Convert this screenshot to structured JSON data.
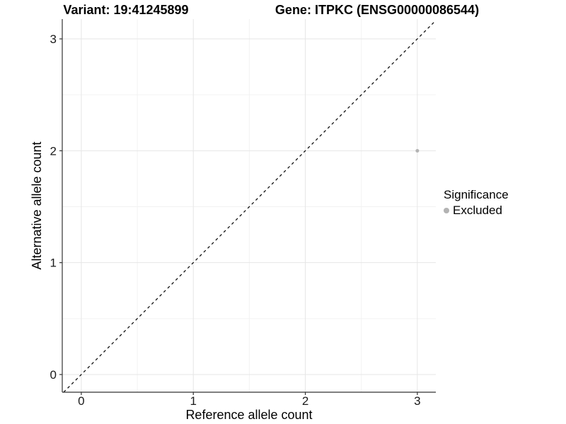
{
  "titles": {
    "left": "Variant: 19:41245899",
    "right": "Gene: ITPKC (ENSG00000086544)"
  },
  "chart_data": {
    "type": "scatter",
    "title": "Variant: 19:41245899 — Gene: ITPKC (ENSG00000086544)",
    "xlabel": "Reference allele count",
    "ylabel": "Alternative allele count",
    "xlim": [
      -0.17,
      3.165
    ],
    "ylim": [
      -0.158,
      3.177
    ],
    "xticks": [
      0,
      1,
      2,
      3
    ],
    "xtick_labels": [
      "0",
      "1",
      "2",
      "3"
    ],
    "yticks": [
      0,
      1,
      2,
      3
    ],
    "ytick_labels": [
      "0",
      "1",
      "2",
      "3"
    ],
    "grid": {
      "show_major": true,
      "show_minor": true,
      "minor_x": [
        0.5,
        1.5,
        2.5
      ],
      "minor_y": [
        0.5,
        1.5,
        2.5
      ],
      "major_color": "#e6e6e6",
      "minor_color": "#f2f2f2"
    },
    "axis": {
      "line_color": "#333333",
      "text_color": "#1a1a1a",
      "tick_length": 4
    },
    "reference_line": {
      "slope": 1,
      "intercept": 0,
      "style": "dashed",
      "color": "#000000"
    },
    "series": [
      {
        "name": "Excluded",
        "color": "#b3b3b3",
        "marker": "circle",
        "point_radius": 2.5,
        "points": [
          [
            3,
            2
          ]
        ]
      }
    ],
    "legend": {
      "title": "Significance",
      "position": "right",
      "entries": [
        {
          "label": "Excluded",
          "color": "#b3b3b3",
          "marker": "circle"
        }
      ]
    }
  }
}
